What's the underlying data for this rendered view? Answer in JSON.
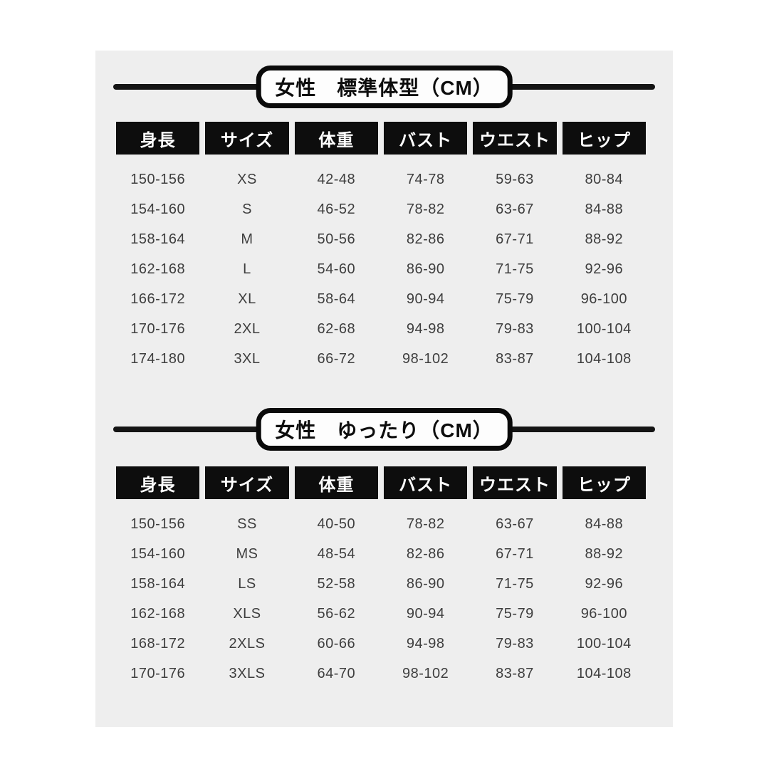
{
  "image_type": "size-chart-infographic",
  "colors": {
    "page_bg": "#ffffff",
    "panel_bg": "#eeeeee",
    "header_box_bg": "#0d0d0d",
    "header_text": "#ffffff",
    "rule_line": "#141414",
    "pill_bg": "#fdfdfd",
    "pill_border": "#0a0a0a",
    "data_text": "#3e3e3e"
  },
  "tables": [
    {
      "title": "女性　標準体型（CM）",
      "headers": [
        "身長",
        "サイズ",
        "体重",
        "バスト",
        "ウエスト",
        "ヒップ"
      ],
      "rows": [
        [
          "150-156",
          "XS",
          "42-48",
          "74-78",
          "59-63",
          "80-84"
        ],
        [
          "154-160",
          "S",
          "46-52",
          "78-82",
          "63-67",
          "84-88"
        ],
        [
          "158-164",
          "M",
          "50-56",
          "82-86",
          "67-71",
          "88-92"
        ],
        [
          "162-168",
          "L",
          "54-60",
          "86-90",
          "71-75",
          "92-96"
        ],
        [
          "166-172",
          "XL",
          "58-64",
          "90-94",
          "75-79",
          "96-100"
        ],
        [
          "170-176",
          "2XL",
          "62-68",
          "94-98",
          "79-83",
          "100-104"
        ],
        [
          "174-180",
          "3XL",
          "66-72",
          "98-102",
          "83-87",
          "104-108"
        ]
      ]
    },
    {
      "title": "女性　ゆったり（CM）",
      "headers": [
        "身長",
        "サイズ",
        "体重",
        "バスト",
        "ウエスト",
        "ヒップ"
      ],
      "rows": [
        [
          "150-156",
          "SS",
          "40-50",
          "78-82",
          "63-67",
          "84-88"
        ],
        [
          "154-160",
          "MS",
          "48-54",
          "82-86",
          "67-71",
          "88-92"
        ],
        [
          "158-164",
          "LS",
          "52-58",
          "86-90",
          "71-75",
          "92-96"
        ],
        [
          "162-168",
          "XLS",
          "56-62",
          "90-94",
          "75-79",
          "96-100"
        ],
        [
          "168-172",
          "2XLS",
          "60-66",
          "94-98",
          "79-83",
          "100-104"
        ],
        [
          "170-176",
          "3XLS",
          "64-70",
          "98-102",
          "83-87",
          "104-108"
        ]
      ]
    }
  ]
}
